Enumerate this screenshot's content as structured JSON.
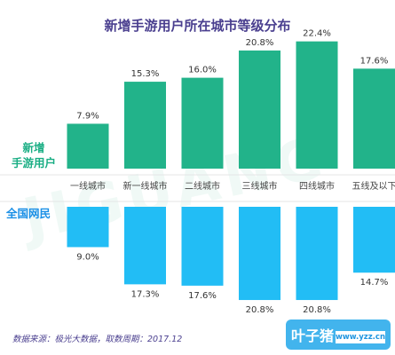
{
  "title": "新增手游用户所在城市等级分布",
  "labels": {
    "top_series": [
      "新增",
      "手游用户"
    ],
    "bottom_series": "全国网民"
  },
  "footer": "数据来源：极光大数据，取数周期：2017.12",
  "watermark": {
    "logo": "JIGUANG",
    "brand": "叶子猪",
    "url": "www.yzz.cn"
  },
  "colors": {
    "top": "#22b38a",
    "bottom": "#22bdf5",
    "title": "#4a3f8f"
  },
  "chart_data": {
    "type": "bar",
    "categories": [
      "一线城市",
      "新一线城市",
      "二线城市",
      "三线城市",
      "四线城市",
      "五线及以下"
    ],
    "series": [
      {
        "name": "新增手游用户",
        "values": [
          7.9,
          15.3,
          16.0,
          20.8,
          22.4,
          17.6
        ],
        "direction": "up"
      },
      {
        "name": "全国网民",
        "values": [
          9.0,
          17.3,
          17.6,
          20.8,
          20.8,
          14.7
        ],
        "direction": "down"
      }
    ],
    "value_suffix": "%",
    "title": "新增手游用户所在城市等级分布"
  }
}
